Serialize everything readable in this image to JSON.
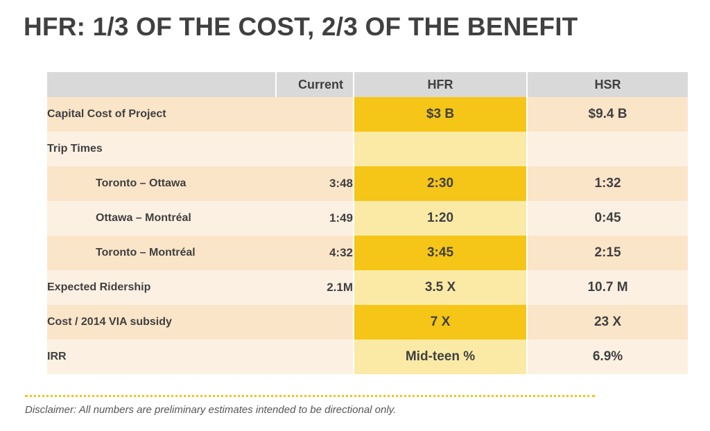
{
  "title": "HFR: 1/3 OF THE COST, 2/3 OF THE BENEFIT",
  "colors": {
    "hfr_highlight": "#f5c518",
    "hfr_light": "#fbeaa6",
    "row_dark": "#fbe5c9",
    "row_light": "#fcf0e2",
    "header_bg": "#d9d9d9"
  },
  "table": {
    "headers": [
      "",
      "Current",
      "HFR",
      "HSR"
    ],
    "rows": [
      {
        "label": "Capital Cost of Project",
        "current": "",
        "hfr": "$3 B",
        "hsr": "$9.4 B"
      },
      {
        "label": "Trip Times",
        "current": "",
        "hfr": "",
        "hsr": ""
      },
      {
        "label": "Toronto – Ottawa",
        "current": "3:48",
        "hfr": "2:30",
        "hsr": "1:32"
      },
      {
        "label": "Ottawa – Montréal",
        "current": "1:49",
        "hfr": "1:20",
        "hsr": "0:45"
      },
      {
        "label": "Toronto – Montréal",
        "current": "4:32",
        "hfr": "3:45",
        "hsr": "2:15"
      },
      {
        "label": "Expected Ridership",
        "current": "2.1M",
        "hfr": "3.5 X",
        "hsr": "10.7 M"
      },
      {
        "label": "Cost / 2014 VIA subsidy",
        "current": "",
        "hfr": "7 X",
        "hsr": "23 X"
      },
      {
        "label": "IRR",
        "current": "",
        "hfr": "Mid-teen %",
        "hsr": "6.9%"
      }
    ]
  },
  "disclaimer": "Disclaimer: All numbers are preliminary estimates intended to be directional only."
}
